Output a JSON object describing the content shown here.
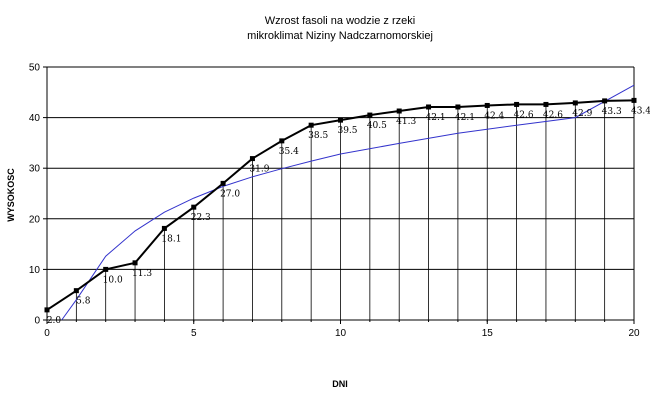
{
  "chart_data": {
    "type": "line",
    "title": "Wzrost fasoli na wodzie z rzeki",
    "subtitle": "mikroklimat Niziny Nadczarnomorskiej",
    "xlabel": "DNI",
    "ylabel": "WYSOKOSC",
    "xlim": [
      0,
      20
    ],
    "ylim": [
      0,
      50
    ],
    "x_ticks": [
      "0",
      "5",
      "10",
      "15",
      "20"
    ],
    "y_ticks": [
      "0",
      "10",
      "20",
      "30",
      "40",
      "50"
    ],
    "grid": "horizontal",
    "legend": "none",
    "series": [
      {
        "x": [
          0,
          1,
          2,
          3,
          4,
          5,
          6,
          7,
          8,
          9,
          10,
          11,
          12,
          13,
          14,
          15,
          16,
          17,
          18,
          19,
          20
        ],
        "y": [
          2.0,
          5.8,
          10.0,
          11.3,
          18.1,
          22.3,
          27.0,
          31.9,
          35.4,
          38.5,
          39.5,
          40.5,
          41.3,
          42.1,
          42.1,
          42.4,
          42.6,
          42.6,
          42.9,
          43.3,
          43.4
        ],
        "labels": [
          "2.0",
          "5.8",
          "10.0",
          "11.3",
          "18.1",
          "22.3",
          "27.0",
          "31.9",
          "35.4",
          "38.5",
          "39.5",
          "40.5",
          "41.3",
          "42.1",
          "42.1",
          "42.4",
          "42.6",
          "42.6",
          "42.9",
          "43.3",
          "43.4"
        ],
        "color": "#000000"
      }
    ],
    "trendline": {
      "type": "logarithmic",
      "color": "#3333cc",
      "x": [
        0.5,
        1,
        2,
        3,
        4,
        5,
        6,
        7,
        8,
        9,
        10,
        12,
        14,
        16,
        18,
        20
      ],
      "y": [
        0,
        4.0,
        12.6,
        17.6,
        21.3,
        24.1,
        26.4,
        28.3,
        29.9,
        31.4,
        32.8,
        34.9,
        36.9,
        38.5,
        40.0,
        46.4
      ]
    }
  }
}
